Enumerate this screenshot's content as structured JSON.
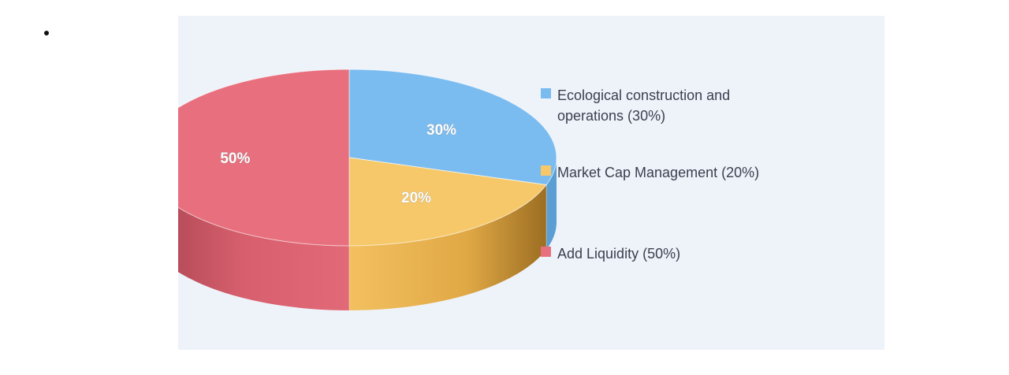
{
  "chart_data": {
    "type": "pie",
    "style": "3d",
    "title": "",
    "slices": [
      {
        "label": "Ecological construction and operations (30%)",
        "legend_lines": [
          "Ecological construction and",
          "operations (30%)"
        ],
        "value": 30,
        "data_label": "30%",
        "color": "#7bbcf0",
        "side_color": "#5b9ed4"
      },
      {
        "label": "Market Cap Management (20%)",
        "legend_lines": [
          "Market Cap Management (20%)"
        ],
        "value": 20,
        "data_label": "20%",
        "color": "#f6c86a",
        "side_color": "#d9a145"
      },
      {
        "label": "Add Liquidity (50%)",
        "legend_lines": [
          "Add Liquidity (50%)"
        ],
        "value": 50,
        "data_label": "50%",
        "color": "#e8707e",
        "side_color": "#c0505e"
      }
    ],
    "legend_position": "right"
  }
}
